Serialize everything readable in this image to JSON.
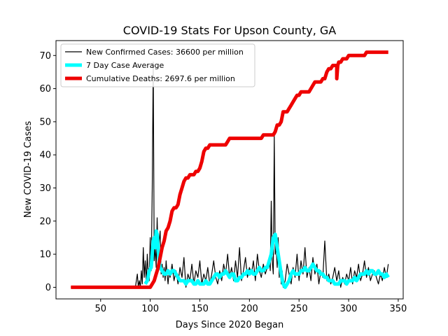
{
  "chart_data": {
    "type": "line",
    "title": "COVID-19 Stats For Upson County, GA",
    "xlabel": "Days Since 2020 Began",
    "ylabel": "New COVID-19 Cases",
    "xlim": [
      5,
      355
    ],
    "ylim": [
      -3.5,
      74.5
    ],
    "xticks": [
      50,
      100,
      150,
      200,
      250,
      300,
      350
    ],
    "yticks": [
      0,
      10,
      20,
      30,
      40,
      50,
      60,
      70
    ],
    "grid": false,
    "legend_position": "top-left",
    "series": [
      {
        "name": "New Confirmed Cases: 36600 per million",
        "color": "#000000",
        "style": "thin",
        "x": [
          20,
          85,
          87,
          88,
          89,
          90,
          91,
          92,
          93,
          94,
          95,
          96,
          97,
          98,
          99,
          100,
          101,
          102,
          103,
          104,
          105,
          106,
          107,
          108,
          109,
          110,
          111,
          112,
          113,
          114,
          115,
          116,
          117,
          118,
          119,
          120,
          122,
          124,
          126,
          128,
          130,
          132,
          134,
          136,
          138,
          140,
          142,
          144,
          146,
          148,
          150,
          152,
          154,
          156,
          158,
          160,
          162,
          164,
          166,
          168,
          170,
          172,
          174,
          176,
          178,
          180,
          182,
          184,
          186,
          188,
          190,
          192,
          194,
          196,
          198,
          200,
          202,
          204,
          206,
          208,
          210,
          212,
          214,
          216,
          218,
          220,
          221,
          222,
          223,
          224,
          225,
          226,
          227,
          228,
          229,
          230,
          231,
          232,
          233,
          234,
          236,
          238,
          240,
          242,
          244,
          246,
          248,
          250,
          252,
          254,
          256,
          258,
          260,
          262,
          264,
          266,
          268,
          270,
          272,
          274,
          276,
          278,
          280,
          282,
          284,
          286,
          288,
          290,
          292,
          294,
          296,
          298,
          300,
          302,
          304,
          306,
          308,
          310,
          312,
          314,
          316,
          318,
          320,
          322,
          324,
          326,
          328,
          330,
          332,
          334,
          336,
          338,
          340
        ],
        "y": [
          0,
          0,
          4,
          0,
          2,
          0,
          5,
          1,
          12,
          3,
          8,
          1,
          10,
          4,
          2,
          15,
          5,
          30,
          68,
          8,
          12,
          6,
          21,
          9,
          14,
          17,
          4,
          7,
          3,
          6,
          2,
          8,
          4,
          1,
          5,
          3,
          7,
          2,
          5,
          1,
          6,
          3,
          9,
          0,
          4,
          2,
          7,
          1,
          5,
          3,
          8,
          1,
          4,
          2,
          6,
          1,
          4,
          8,
          3,
          1,
          5,
          2,
          7,
          4,
          10,
          3,
          6,
          2,
          8,
          3,
          12,
          2,
          5,
          9,
          3,
          6,
          4,
          8,
          2,
          10,
          5,
          3,
          7,
          4,
          6,
          9,
          5,
          26,
          8,
          4,
          46,
          10,
          12,
          6,
          15,
          3,
          8,
          1,
          5,
          0,
          2,
          7,
          4,
          1,
          6,
          3,
          10,
          2,
          8,
          4,
          12,
          3,
          6,
          2,
          9,
          4,
          7,
          1,
          5,
          3,
          14,
          2,
          4,
          1,
          3,
          6,
          2,
          5,
          0,
          3,
          1,
          4,
          2,
          6,
          1,
          5,
          3,
          7,
          2,
          4,
          8,
          3,
          6,
          2,
          4,
          5,
          3,
          1,
          4,
          2,
          6,
          3,
          7
        ]
      },
      {
        "name": "7 Day Case Average",
        "color": "#00ffff",
        "style": "thick",
        "x": [
          95,
          97,
          99,
          101,
          103,
          104,
          105,
          106,
          107,
          108,
          109,
          110,
          112,
          114,
          116,
          118,
          120,
          122,
          124,
          126,
          128,
          130,
          132,
          134,
          136,
          138,
          140,
          142,
          144,
          146,
          148,
          150,
          152,
          154,
          156,
          158,
          160,
          162,
          164,
          166,
          168,
          170,
          172,
          174,
          176,
          178,
          180,
          182,
          184,
          186,
          188,
          190,
          192,
          194,
          196,
          198,
          200,
          202,
          204,
          206,
          208,
          210,
          212,
          214,
          216,
          218,
          220,
          222,
          224,
          226,
          228,
          230,
          232,
          234,
          236,
          238,
          240,
          242,
          244,
          246,
          248,
          250,
          252,
          254,
          256,
          258,
          260,
          262,
          264,
          266,
          268,
          270,
          272,
          274,
          276,
          278,
          280,
          282,
          284,
          286,
          288,
          290,
          292,
          294,
          296,
          298,
          300,
          302,
          304,
          306,
          308,
          310,
          312,
          314,
          316,
          318,
          320,
          322,
          324,
          326,
          328,
          330,
          332,
          334,
          336,
          338,
          340
        ],
        "y": [
          1,
          2,
          5,
          6,
          14,
          15,
          12,
          17,
          16,
          11,
          8,
          6,
          5,
          4,
          4,
          5,
          4,
          5,
          5,
          4,
          3,
          2,
          2,
          2,
          1,
          2,
          2,
          2,
          1,
          1,
          2,
          1,
          1,
          1,
          2,
          1,
          1,
          2,
          3,
          4,
          4,
          3,
          4,
          4,
          5,
          4,
          3,
          4,
          4,
          2,
          2,
          3,
          3,
          4,
          4,
          5,
          4,
          5,
          4,
          4,
          5,
          6,
          5,
          5,
          6,
          6,
          8,
          10,
          15,
          16,
          12,
          8,
          4,
          1,
          0,
          1,
          2,
          4,
          5,
          4,
          4,
          4,
          5,
          5,
          6,
          5,
          5,
          6,
          7,
          6,
          5,
          5,
          4,
          4,
          3,
          3,
          2,
          2,
          2,
          1,
          1,
          1,
          2,
          2,
          2,
          1,
          2,
          2,
          2,
          3,
          2,
          3,
          4,
          4,
          4,
          5,
          4,
          5,
          5,
          4,
          4,
          5,
          4,
          4,
          3,
          4,
          3
        ]
      },
      {
        "name": "Cumulative Deaths: 2697.6 per million",
        "color": "#ee0000",
        "style": "thick",
        "x": [
          20,
          100,
          102,
          104,
          106,
          108,
          110,
          112,
          114,
          116,
          118,
          120,
          122,
          124,
          126,
          128,
          130,
          132,
          134,
          136,
          138,
          140,
          142,
          144,
          146,
          148,
          150,
          152,
          154,
          156,
          158,
          160,
          162,
          164,
          166,
          168,
          170,
          172,
          174,
          176,
          178,
          180,
          182,
          184,
          186,
          188,
          190,
          200,
          210,
          212,
          214,
          216,
          218,
          220,
          222,
          224,
          226,
          228,
          230,
          232,
          234,
          236,
          238,
          240,
          242,
          244,
          246,
          248,
          250,
          252,
          254,
          256,
          258,
          260,
          262,
          264,
          266,
          268,
          270,
          272,
          274,
          276,
          278,
          280,
          282,
          284,
          286,
          288,
          288,
          289,
          290,
          292,
          294,
          296,
          298,
          300,
          302,
          304,
          306,
          308,
          310,
          312,
          314,
          316,
          318,
          320,
          325,
          330,
          335,
          340
        ],
        "y": [
          0,
          0,
          1,
          2,
          4,
          6,
          9,
          12,
          14,
          17,
          18,
          20,
          23,
          24,
          24,
          25,
          28,
          30,
          32,
          33,
          33,
          34,
          34,
          34,
          35,
          35,
          36,
          38,
          41,
          42,
          42,
          43,
          43,
          43,
          43,
          43,
          43,
          43,
          43,
          43,
          44,
          45,
          45,
          45,
          45,
          45,
          45,
          45,
          45,
          45,
          46,
          46,
          46,
          46,
          46,
          46,
          47,
          49,
          49,
          50,
          53,
          53,
          53,
          54,
          55,
          56,
          57,
          58,
          58,
          59,
          59,
          59,
          59,
          59,
          60,
          61,
          62,
          62,
          62,
          62,
          63,
          63,
          65,
          66,
          66,
          67,
          67,
          67,
          63,
          67,
          68,
          68,
          69,
          69,
          69,
          70,
          70,
          70,
          70,
          70,
          70,
          70,
          70,
          70,
          71,
          71,
          71,
          71,
          71,
          71
        ]
      }
    ]
  }
}
